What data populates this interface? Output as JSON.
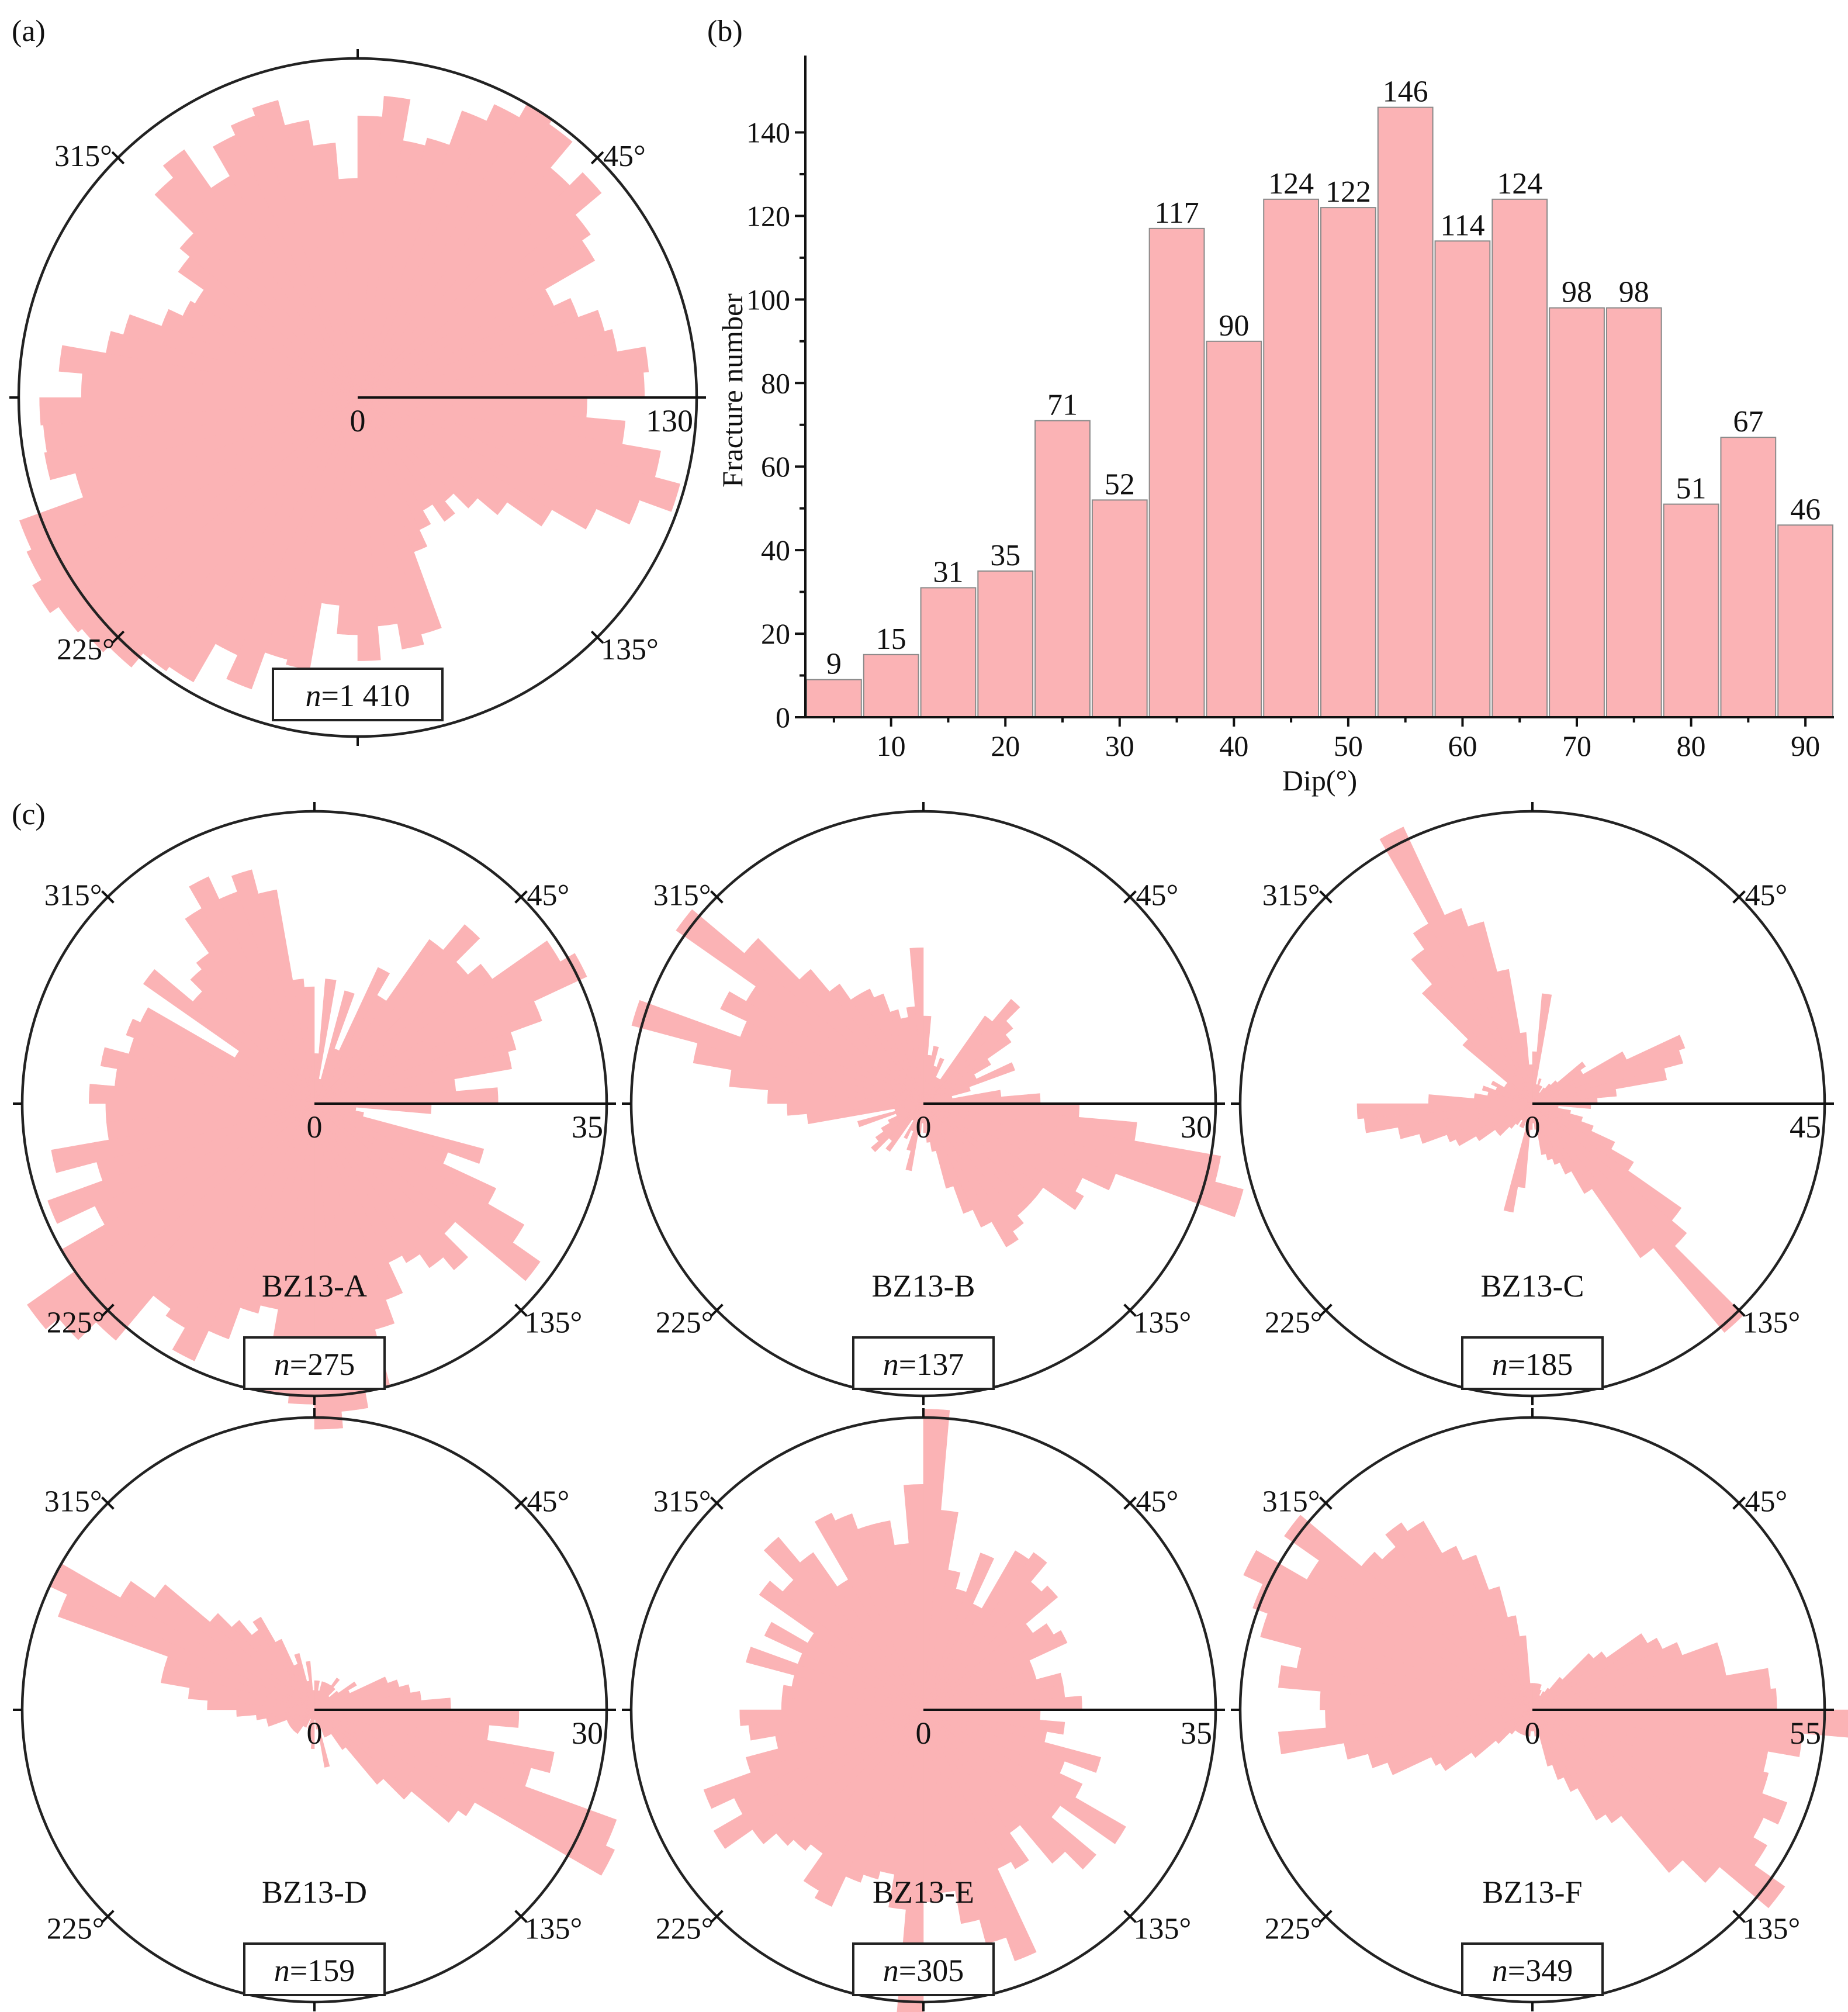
{
  "panels": {
    "a": {
      "label": "(a)"
    },
    "b": {
      "label": "(b)"
    },
    "c": {
      "label": "(c)"
    }
  },
  "colors": {
    "fill": "#fbb3b5",
    "bar_edge": "#8a8a8a",
    "line": "#222222"
  },
  "direction_labels": [
    "315°",
    "45°",
    "225°",
    "135°"
  ],
  "n_prefix": "n",
  "chart_data": [
    {
      "id": "a",
      "type": "rose",
      "max": 130,
      "center_label": "0",
      "max_label": "130",
      "name": "",
      "n_value": "=1 410",
      "values": [
        108,
        116,
        100,
        103,
        117,
        124,
        130,
        128,
        115,
        122,
        109,
        105,
        83,
        90,
        98,
        101,
        112,
        110,
        88,
        103,
        118,
        128,
        115,
        101,
        86,
        70,
        60,
        52,
        58,
        50,
        56,
        63,
        94,
        98,
        88,
        101,
        91,
        80,
        106,
        104,
        119,
        109,
        126,
        128,
        135,
        138,
        140,
        144,
        140,
        138,
        112,
        122,
        121,
        122,
        106,
        115,
        98,
        93,
        80,
        74,
        72,
        84,
        89,
        110,
        116,
        98,
        111,
        115,
        118,
        108,
        98,
        84
      ]
    },
    {
      "id": "b",
      "type": "bar",
      "title": "",
      "xlabel": "Dip(°)",
      "ylabel": "Fracture number",
      "categories": [
        "0-5",
        "5-10",
        "10-15",
        "15-20",
        "20-25",
        "25-30",
        "30-35",
        "35-40",
        "40-45",
        "45-50",
        "50-55",
        "55-60",
        "60-65",
        "65-70",
        "70-75",
        "75-80",
        "80-85",
        "85-90"
      ],
      "values": [
        9,
        15,
        31,
        35,
        71,
        52,
        117,
        90,
        124,
        122,
        146,
        114,
        124,
        98,
        98,
        51,
        67,
        46
      ],
      "x_ticks": [
        10,
        20,
        30,
        40,
        50,
        60,
        70,
        80,
        90
      ],
      "y_ticks": [
        0,
        20,
        40,
        60,
        80,
        100,
        120,
        140
      ],
      "xlim": [
        2.5,
        92.5
      ],
      "ylim": [
        0,
        157
      ]
    },
    {
      "id": "BZ13-A",
      "type": "rose",
      "max": 35,
      "center_label": "0",
      "max_label": "35",
      "name": "BZ13-A",
      "n_value": "=275",
      "values": [
        6,
        15,
        3,
        14,
        7,
        18,
        15,
        24,
        28,
        24,
        26,
        34,
        36,
        29,
        25,
        24,
        17,
        22,
        14,
        5,
        6,
        21,
        17,
        24,
        29,
        33,
        22,
        26,
        24,
        22,
        21,
        25,
        28,
        35,
        37,
        39,
        36,
        35,
        25,
        26,
        30,
        34,
        31,
        30,
        37,
        40,
        42,
        35,
        29,
        34,
        27,
        32,
        25,
        25,
        27,
        24,
        26,
        23,
        24,
        23,
        11,
        25,
        19,
        21,
        22,
        27,
        30,
        27,
        29,
        26,
        15,
        14
      ]
    },
    {
      "id": "BZ13-B",
      "type": "rose",
      "max": 30,
      "center_label": "0",
      "max_label": "30",
      "name": "BZ13-B",
      "n_value": "=137",
      "values": [
        9,
        5,
        6,
        4,
        5,
        3,
        3,
        11,
        14,
        12,
        11,
        8,
        6,
        10,
        5,
        3,
        8,
        12,
        16,
        22,
        31,
        34,
        21,
        18,
        19,
        15,
        15,
        15,
        16,
        17,
        14,
        12,
        9,
        5,
        4,
        3,
        2,
        3,
        7,
        5,
        3,
        4,
        2,
        6,
        5,
        7,
        6,
        5,
        4,
        3,
        7,
        3,
        12,
        14,
        16,
        20,
        24,
        31,
        20,
        23,
        21,
        31,
        24,
        18,
        15,
        13,
        13,
        12,
        10,
        9,
        10,
        16
      ]
    },
    {
      "id": "BZ13-C",
      "type": "rose",
      "max": 45,
      "center_label": "0",
      "max_label": "45",
      "name": "BZ13-C",
      "n_value": "=185",
      "values": [
        8,
        17,
        3,
        4,
        3,
        3,
        2,
        3,
        4,
        5,
        10,
        9,
        16,
        25,
        24,
        21,
        13,
        10,
        9,
        4,
        6,
        8,
        10,
        14,
        18,
        28,
        31,
        46,
        29,
        16,
        12,
        10,
        9,
        8,
        4,
        3,
        4,
        13,
        17,
        3,
        4,
        4,
        3,
        4,
        5,
        7,
        7,
        10,
        13,
        14,
        18,
        21,
        26,
        27,
        16,
        9,
        7,
        8,
        6,
        7,
        5,
        5,
        14,
        24,
        29,
        32,
        47,
        32,
        29,
        21,
        11,
        6
      ]
    },
    {
      "id": "BZ13-D",
      "type": "rose",
      "max": 30,
      "center_label": "0",
      "max_label": "30",
      "name": "BZ13-D",
      "n_value": "=159",
      "values": [
        3,
        3,
        2,
        3,
        3,
        3,
        3,
        4,
        3,
        2,
        3,
        5,
        4,
        8,
        9,
        10,
        11,
        14,
        21,
        18,
        25,
        23,
        33,
        34,
        19,
        18,
        13,
        10,
        5,
        3,
        3,
        3,
        2,
        6,
        2,
        1,
        4,
        3,
        2,
        2,
        1,
        2,
        2,
        3,
        3,
        3,
        3,
        3,
        3,
        3,
        5,
        5,
        6,
        8,
        11,
        13,
        16,
        16,
        28,
        30,
        23,
        20,
        14,
        12,
        10,
        11,
        8,
        5,
        6,
        3,
        5,
        2
      ]
    },
    {
      "id": "BZ13-E",
      "type": "rose",
      "max": 35,
      "center_label": "0",
      "max_label": "35",
      "name": "BZ13-E",
      "n_value": "=305",
      "values": [
        36,
        24,
        17,
        15,
        20,
        14,
        22,
        23,
        20,
        21,
        16,
        18,
        19,
        14,
        14,
        17,
        17,
        19,
        14,
        17,
        15,
        22,
        18,
        21,
        28,
        20,
        27,
        24,
        18,
        22,
        21,
        32,
        29,
        26,
        22,
        23,
        41,
        24,
        20,
        21,
        22,
        26,
        25,
        21,
        22,
        23,
        25,
        29,
        25,
        28,
        22,
        18,
        21,
        22,
        17,
        17,
        16,
        22,
        16,
        21,
        16,
        24,
        22,
        27,
        23,
        18,
        26,
        25,
        23,
        23,
        20,
        27
      ]
    },
    {
      "id": "BZ13-F",
      "type": "rose",
      "max": 55,
      "center_label": "0",
      "max_label": "55",
      "name": "BZ13-F",
      "n_value": "=349",
      "values": [
        5,
        5,
        5,
        5,
        4,
        3,
        4,
        5,
        8,
        15,
        17,
        25,
        27,
        30,
        37,
        37,
        45,
        46,
        60,
        51,
        45,
        46,
        51,
        48,
        51,
        58,
        46,
        40,
        26,
        24,
        17,
        14,
        11,
        5,
        5,
        4,
        4,
        5,
        4,
        5,
        5,
        5,
        5,
        5,
        6,
        9,
        14,
        20,
        21,
        29,
        32,
        36,
        48,
        39,
        40,
        48,
        45,
        53,
        56,
        60,
        49,
        57,
        42,
        40,
        43,
        41,
        34,
        31,
        24,
        18,
        14,
        5
      ]
    }
  ]
}
